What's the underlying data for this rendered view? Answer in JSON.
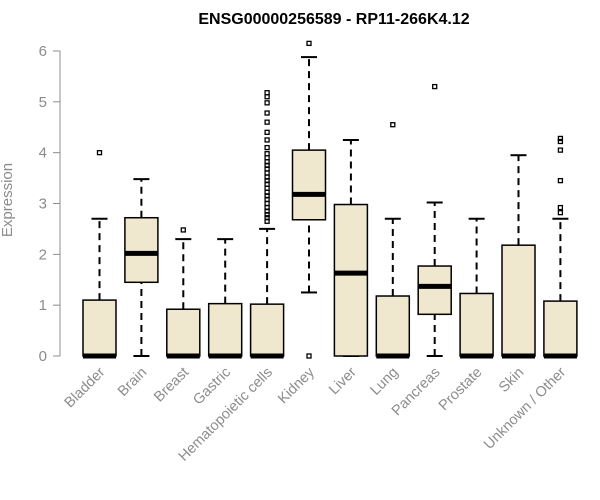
{
  "chart_data": {
    "type": "boxplot",
    "title": "ENSG00000256589 - RP11-266K4.12",
    "xlabel": "",
    "ylabel": "Expression",
    "ylim": [
      0,
      6.2
    ],
    "yticks": [
      0,
      1,
      2,
      3,
      4,
      5,
      6
    ],
    "grid": false,
    "categories": [
      "Bladder",
      "Brain",
      "Breast",
      "Gastric",
      "Hematopoietic cells",
      "Kidney",
      "Liver",
      "Lung",
      "Pancreas",
      "Prostate",
      "Skin",
      "Unknown / Other"
    ],
    "boxes": [
      {
        "category": "Bladder",
        "whisker_low": 0,
        "q1": 0,
        "median": 0,
        "q3": 1.1,
        "whisker_high": 2.7,
        "outliers": [
          4.0
        ]
      },
      {
        "category": "Brain",
        "whisker_low": 0,
        "q1": 1.45,
        "median": 2.02,
        "q3": 2.72,
        "whisker_high": 3.48,
        "outliers": []
      },
      {
        "category": "Breast",
        "whisker_low": 0,
        "q1": 0,
        "median": 0,
        "q3": 0.92,
        "whisker_high": 2.3,
        "outliers": [
          2.48
        ]
      },
      {
        "category": "Gastric",
        "whisker_low": 0,
        "q1": 0,
        "median": 0,
        "q3": 1.03,
        "whisker_high": 2.3,
        "outliers": []
      },
      {
        "category": "Hematopoietic cells",
        "whisker_low": 0,
        "q1": 0,
        "median": 0,
        "q3": 1.02,
        "whisker_high": 2.5,
        "outliers": [
          2.65,
          2.72,
          2.78,
          2.85,
          2.92,
          3.0,
          3.08,
          3.15,
          3.22,
          3.3,
          3.38,
          3.45,
          3.52,
          3.6,
          3.68,
          3.75,
          3.82,
          3.9,
          3.98,
          4.1,
          4.25,
          4.4,
          4.6,
          4.78,
          4.98,
          5.1,
          5.18
        ]
      },
      {
        "category": "Kidney",
        "whisker_low": 1.25,
        "q1": 2.68,
        "median": 3.18,
        "q3": 4.05,
        "whisker_high": 5.88,
        "outliers": [
          0.0,
          6.15
        ]
      },
      {
        "category": "Liver",
        "whisker_low": 0,
        "q1": 0,
        "median": 1.63,
        "q3": 2.98,
        "whisker_high": 4.25,
        "outliers": []
      },
      {
        "category": "Lung",
        "whisker_low": 0,
        "q1": 0,
        "median": 0,
        "q3": 1.18,
        "whisker_high": 2.7,
        "outliers": [
          4.55
        ]
      },
      {
        "category": "Pancreas",
        "whisker_low": 0,
        "q1": 0.82,
        "median": 1.37,
        "q3": 1.77,
        "whisker_high": 3.02,
        "outliers": [
          5.3
        ]
      },
      {
        "category": "Prostate",
        "whisker_low": 0,
        "q1": 0,
        "median": 0,
        "q3": 1.23,
        "whisker_high": 2.7,
        "outliers": []
      },
      {
        "category": "Skin",
        "whisker_low": 0,
        "q1": 0,
        "median": 0,
        "q3": 2.18,
        "whisker_high": 3.95,
        "outliers": []
      },
      {
        "category": "Unknown / Other",
        "whisker_low": 0,
        "q1": 0,
        "median": 0,
        "q3": 1.08,
        "whisker_high": 2.7,
        "outliers": [
          2.82,
          2.92,
          3.45,
          4.05,
          4.22,
          4.28
        ]
      }
    ],
    "colors": {
      "box_fill": "#efe8cf",
      "box_stroke": "#000000",
      "axis": "#8c8c8c"
    }
  }
}
